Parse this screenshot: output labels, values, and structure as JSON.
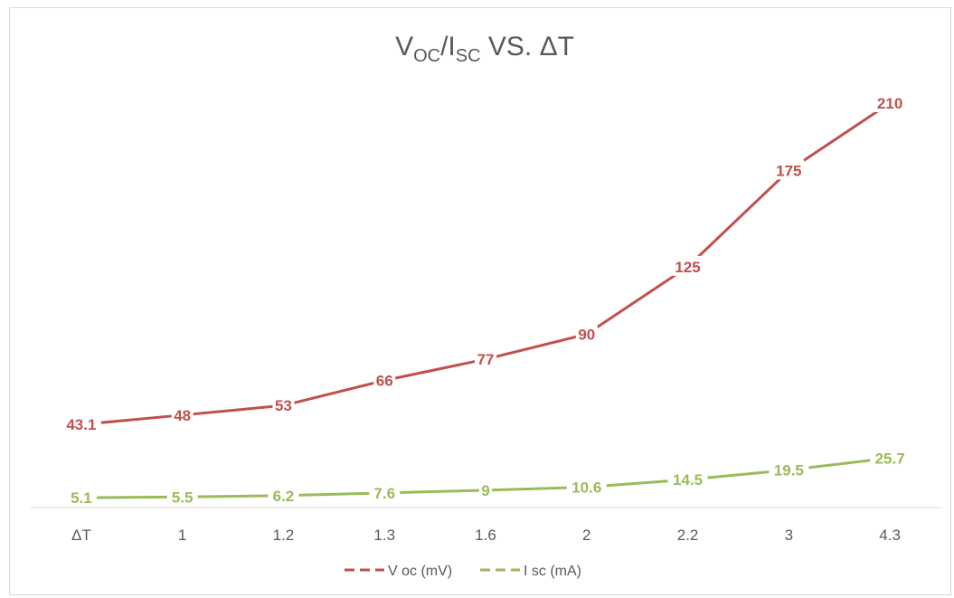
{
  "chart_data": {
    "type": "line",
    "title": {
      "parts": [
        {
          "text": "V",
          "sub": false
        },
        {
          "text": "OC",
          "sub": true
        },
        {
          "text": "/I",
          "sub": false
        },
        {
          "text": "SC",
          "sub": true
        },
        {
          "text": " VS. ΔT",
          "sub": false
        }
      ]
    },
    "categories": [
      "ΔT",
      "1",
      "1.2",
      "1.3",
      "1.6",
      "2",
      "2.2",
      "3",
      "4.3"
    ],
    "series": [
      {
        "name": "V oc (mV)",
        "color": "#c0504d",
        "values": [
          43.1,
          48,
          53,
          66,
          77,
          90,
          125,
          175,
          210
        ],
        "labels": [
          "43.1",
          "48",
          "53",
          "66",
          "77",
          "90",
          "125",
          "175",
          "210"
        ]
      },
      {
        "name": "I sc (mA)",
        "color": "#9bbb59",
        "values": [
          5.1,
          5.5,
          6.2,
          7.6,
          9,
          10.6,
          14.5,
          19.5,
          25.7
        ],
        "labels": [
          "5.1",
          "5.5",
          "6.2",
          "7.6",
          "9",
          "10.6",
          "14.5",
          "19.5",
          "25.7"
        ]
      }
    ],
    "ylim": [
      0,
      217
    ],
    "grid": false,
    "legend": "bottom",
    "axis_color": "#d9d9d9"
  }
}
